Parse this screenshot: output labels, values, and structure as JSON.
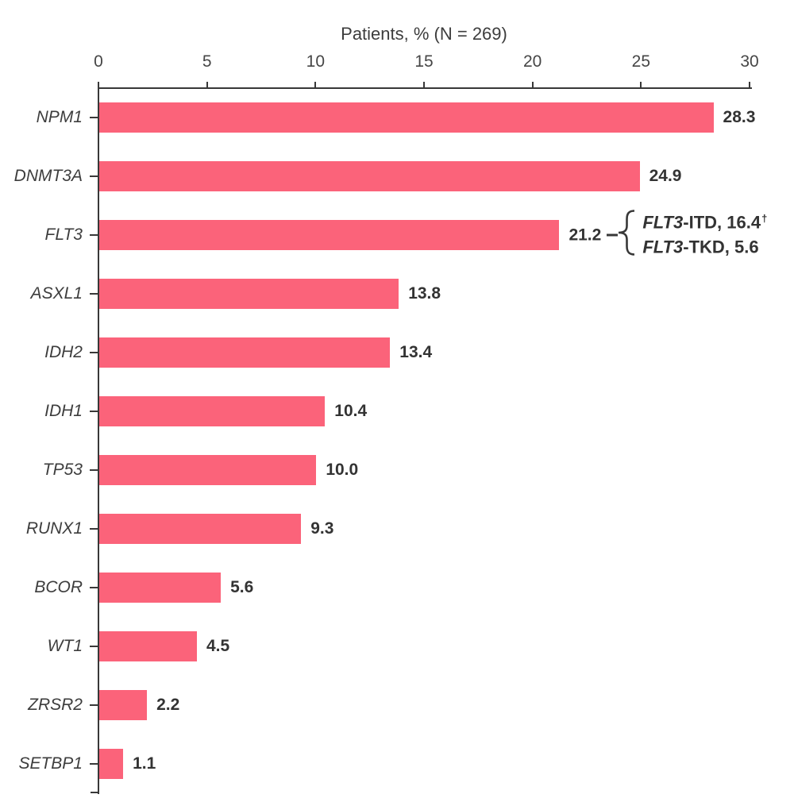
{
  "chart_data": {
    "type": "bar",
    "orientation": "horizontal",
    "title": "Patients, % (N = 269)",
    "xlabel": "Patients, % (N = 269)",
    "ylabel": "",
    "xlim": [
      0,
      30
    ],
    "x_ticks": [
      0,
      5,
      10,
      15,
      20,
      25,
      30
    ],
    "x_tick_labels": [
      "0",
      "5",
      "10",
      "15",
      "20",
      "25",
      "30"
    ],
    "grid": false,
    "legend": false,
    "bar_color": "#FB637A",
    "axis_color": "#383838",
    "text_color": "#3d3d3d",
    "tick_color": "#464646",
    "value_color": "#333333",
    "background_color": "#ffffff",
    "categories": [
      "NPM1",
      "DNMT3A",
      "FLT3",
      "ASXL1",
      "IDH2",
      "IDH1",
      "TP53",
      "RUNX1",
      "BCOR",
      "WT1",
      "ZRSR2",
      "SETBP1"
    ],
    "values": [
      28.3,
      24.9,
      21.2,
      13.8,
      13.4,
      10.4,
      10.0,
      9.3,
      5.6,
      4.5,
      2.2,
      1.1
    ],
    "value_labels": [
      "28.3",
      "24.9",
      "21.2",
      "13.8",
      "13.4",
      "10.4",
      "10.0",
      "9.3",
      "5.6",
      "4.5",
      "2.2",
      "1.1"
    ],
    "annotations": {
      "flt3": {
        "category": "FLT3",
        "lines": [
          {
            "italic_prefix": "FLT3",
            "text": "-ITD, 16.4",
            "superscript": "†"
          },
          {
            "italic_prefix": "FLT3",
            "text": "-TKD, 5.6",
            "superscript": ""
          }
        ]
      }
    }
  }
}
